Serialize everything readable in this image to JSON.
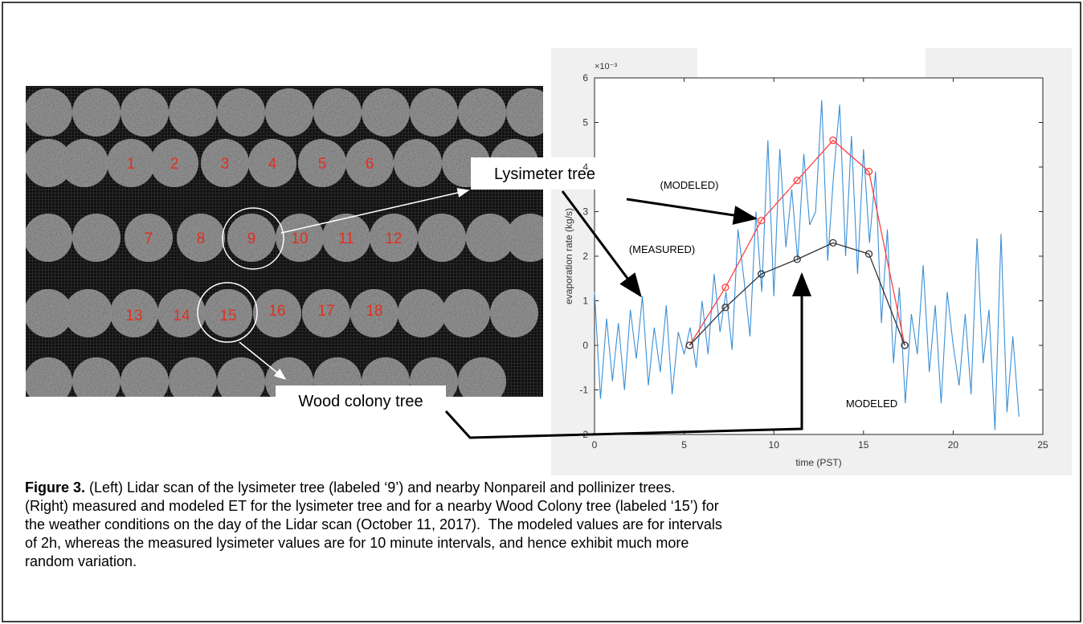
{
  "left_image": {
    "tree_labels": [
      "1",
      "2",
      "3",
      "4",
      "5",
      "6",
      "7",
      "8",
      "9",
      "10",
      "11",
      "12",
      "13",
      "14",
      "15",
      "16",
      "17",
      "18"
    ],
    "callouts": [
      "Lysimeter tree",
      "Wood colony tree"
    ]
  },
  "annotations": [
    "(MODELED)",
    "(MEASURED)",
    "MODELED"
  ],
  "chart_data": {
    "type": "line",
    "xlabel": "time (PST)",
    "ylabel": "evaporation rate (kg/s)",
    "y_multiplier": "×10⁻³",
    "xlim": [
      0,
      25
    ],
    "xticks": [
      0,
      5,
      10,
      15,
      20,
      25
    ],
    "ylim": [
      -2,
      6
    ],
    "yticks": [
      -2,
      -1,
      0,
      1,
      2,
      3,
      4,
      5,
      6
    ],
    "series": [
      {
        "color": "#3b8fd6",
        "marker": false,
        "x": [
          0,
          0.33,
          0.67,
          1,
          1.33,
          1.67,
          2,
          2.33,
          2.67,
          3,
          3.33,
          3.67,
          4,
          4.33,
          4.67,
          5,
          5.33,
          5.67,
          6,
          6.33,
          6.67,
          7,
          7.33,
          7.67,
          8,
          8.33,
          8.67,
          9,
          9.33,
          9.67,
          10,
          10.33,
          10.67,
          11,
          11.33,
          11.67,
          12,
          12.33,
          12.67,
          13,
          13.33,
          13.67,
          14,
          14.33,
          14.67,
          15,
          15.33,
          15.67,
          16,
          16.33,
          16.67,
          17,
          17.33,
          17.67,
          18,
          18.33,
          18.67,
          19,
          19.33,
          19.67,
          20,
          20.33,
          20.67,
          21,
          21.33,
          21.67,
          22,
          22.33,
          22.67,
          23,
          23.33,
          23.67
        ],
        "values": [
          1.2,
          -1.2,
          0.6,
          -0.8,
          0.5,
          -1.0,
          0.8,
          -0.3,
          1.1,
          -0.9,
          0.4,
          -0.6,
          0.9,
          -1.1,
          0.3,
          -0.2,
          0.4,
          -0.5,
          1.0,
          -0.2,
          1.6,
          0.3,
          1.2,
          -0.1,
          2.6,
          1.5,
          0.2,
          3.0,
          1.2,
          4.6,
          1.1,
          4.4,
          2.2,
          3.5,
          1.9,
          4.3,
          2.7,
          3.0,
          5.5,
          1.9,
          3.8,
          5.4,
          2.0,
          4.7,
          1.6,
          4.4,
          2.3,
          3.9,
          0.5,
          2.6,
          -0.4,
          1.3,
          -1.3,
          0.7,
          -0.2,
          1.8,
          -0.6,
          0.9,
          -1.3,
          1.2,
          0.0,
          -0.9,
          0.7,
          -1.1,
          2.4,
          -0.4,
          0.8,
          -1.9,
          2.5,
          -1.5,
          0.2,
          -1.6
        ]
      },
      {
        "color": "#ff4040",
        "marker": true,
        "x": [
          5.3,
          7.3,
          9.3,
          11.3,
          13.3,
          15.3,
          17.3
        ],
        "values": [
          0,
          1.3,
          2.8,
          3.7,
          4.6,
          3.9,
          0
        ]
      },
      {
        "color": "#333333",
        "marker": true,
        "x": [
          5.3,
          7.3,
          9.3,
          11.3,
          13.3,
          15.3,
          17.3
        ],
        "values": [
          0,
          0.85,
          1.6,
          1.93,
          2.3,
          2.05,
          0
        ]
      }
    ]
  },
  "caption": {
    "label": "Figure 3.",
    "lines": [
      " (Left) Lidar scan of the lysimeter tree (labeled ‘9’) and nearby Nonpareil and pollinizer trees.",
      "(Right) measured and modeled ET for the lysimeter tree and for a nearby Wood Colony tree (labeled ‘15’) for",
      "the weather conditions on the day of the Lidar scan (October 11, 2017).  The modeled values are for intervals",
      "of 2h, whereas the measured lysimeter values are for 10 minute intervals, and hence exhibit much more",
      "random variation."
    ]
  }
}
